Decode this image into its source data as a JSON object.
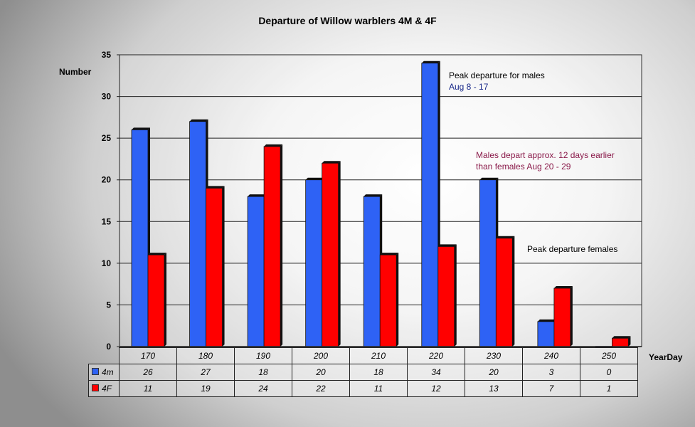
{
  "chart_data": {
    "type": "bar",
    "title": "Departure of Willow warblers 4M & 4F",
    "xlabel": "YearDay",
    "ylabel": "Number",
    "ylim": [
      0,
      35
    ],
    "yticks": [
      0,
      5,
      10,
      15,
      20,
      25,
      30,
      35
    ],
    "categories": [
      "170",
      "180",
      "190",
      "200",
      "210",
      "220",
      "230",
      "240",
      "250"
    ],
    "series": [
      {
        "name": "4m",
        "color": "#2e62f5",
        "values": [
          26,
          27,
          18,
          20,
          18,
          34,
          20,
          3,
          0
        ]
      },
      {
        "name": "4F",
        "color": "#ff0000",
        "values": [
          11,
          19,
          24,
          22,
          11,
          12,
          13,
          7,
          1
        ]
      }
    ],
    "grid": true,
    "legend": "data table below chart",
    "annotations": [
      {
        "lines": [
          "Peak departure for males",
          "Aug 8 - 17"
        ],
        "colors": [
          "#000000",
          "#1a2a8a"
        ]
      },
      {
        "lines": [
          "Males depart approx. 12 days earlier",
          "than females Aug 20 - 29"
        ],
        "colors": [
          "#8a1a4a",
          "#8a1a4a"
        ]
      },
      {
        "lines": [
          "Peak departure females"
        ],
        "colors": [
          "#000000"
        ]
      }
    ]
  }
}
